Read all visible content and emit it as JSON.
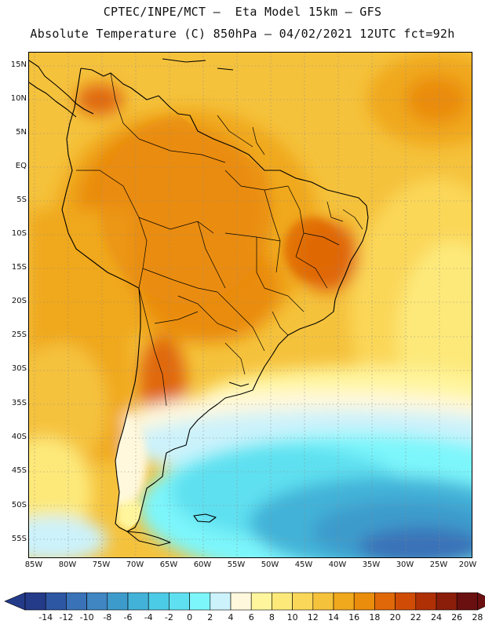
{
  "header": {
    "line1": "CPTEC/INPE/MCT –  Eta Model 15km – GFS",
    "line2": "Absolute Temperature (C) 850hPa – 04/02/2021 12UTC fct=92h"
  },
  "map": {
    "lat_labels": [
      "15N",
      "10N",
      "5N",
      "EQ",
      "5S",
      "10S",
      "15S",
      "20S",
      "25S",
      "30S",
      "35S",
      "40S",
      "45S",
      "50S",
      "55S"
    ],
    "lon_labels": [
      "85W",
      "80W",
      "75W",
      "70W",
      "65W",
      "60W",
      "55W",
      "50W",
      "45W",
      "40W",
      "35W",
      "30W",
      "25W",
      "20W"
    ]
  },
  "legend": {
    "tick_labels": [
      "-14",
      "-12",
      "-10",
      "-8",
      "-6",
      "-4",
      "-2",
      "0",
      "2",
      "4",
      "6",
      "8",
      "10",
      "12",
      "14",
      "16",
      "18",
      "20",
      "22",
      "24",
      "26",
      "28"
    ],
    "colors": [
      "#243b8a",
      "#2d56a3",
      "#3a72b8",
      "#3f86c2",
      "#3d9bcc",
      "#43b2d8",
      "#4ccbe6",
      "#5fe0f0",
      "#7df6fb",
      "#ccf2fb",
      "#fff8dc",
      "#fff59d",
      "#fde97a",
      "#fbd759",
      "#f5c23c",
      "#f0a81c",
      "#ea8c0c",
      "#e06808",
      "#d04c06",
      "#b03006",
      "#8a1e0a",
      "#6a1010"
    ]
  }
}
